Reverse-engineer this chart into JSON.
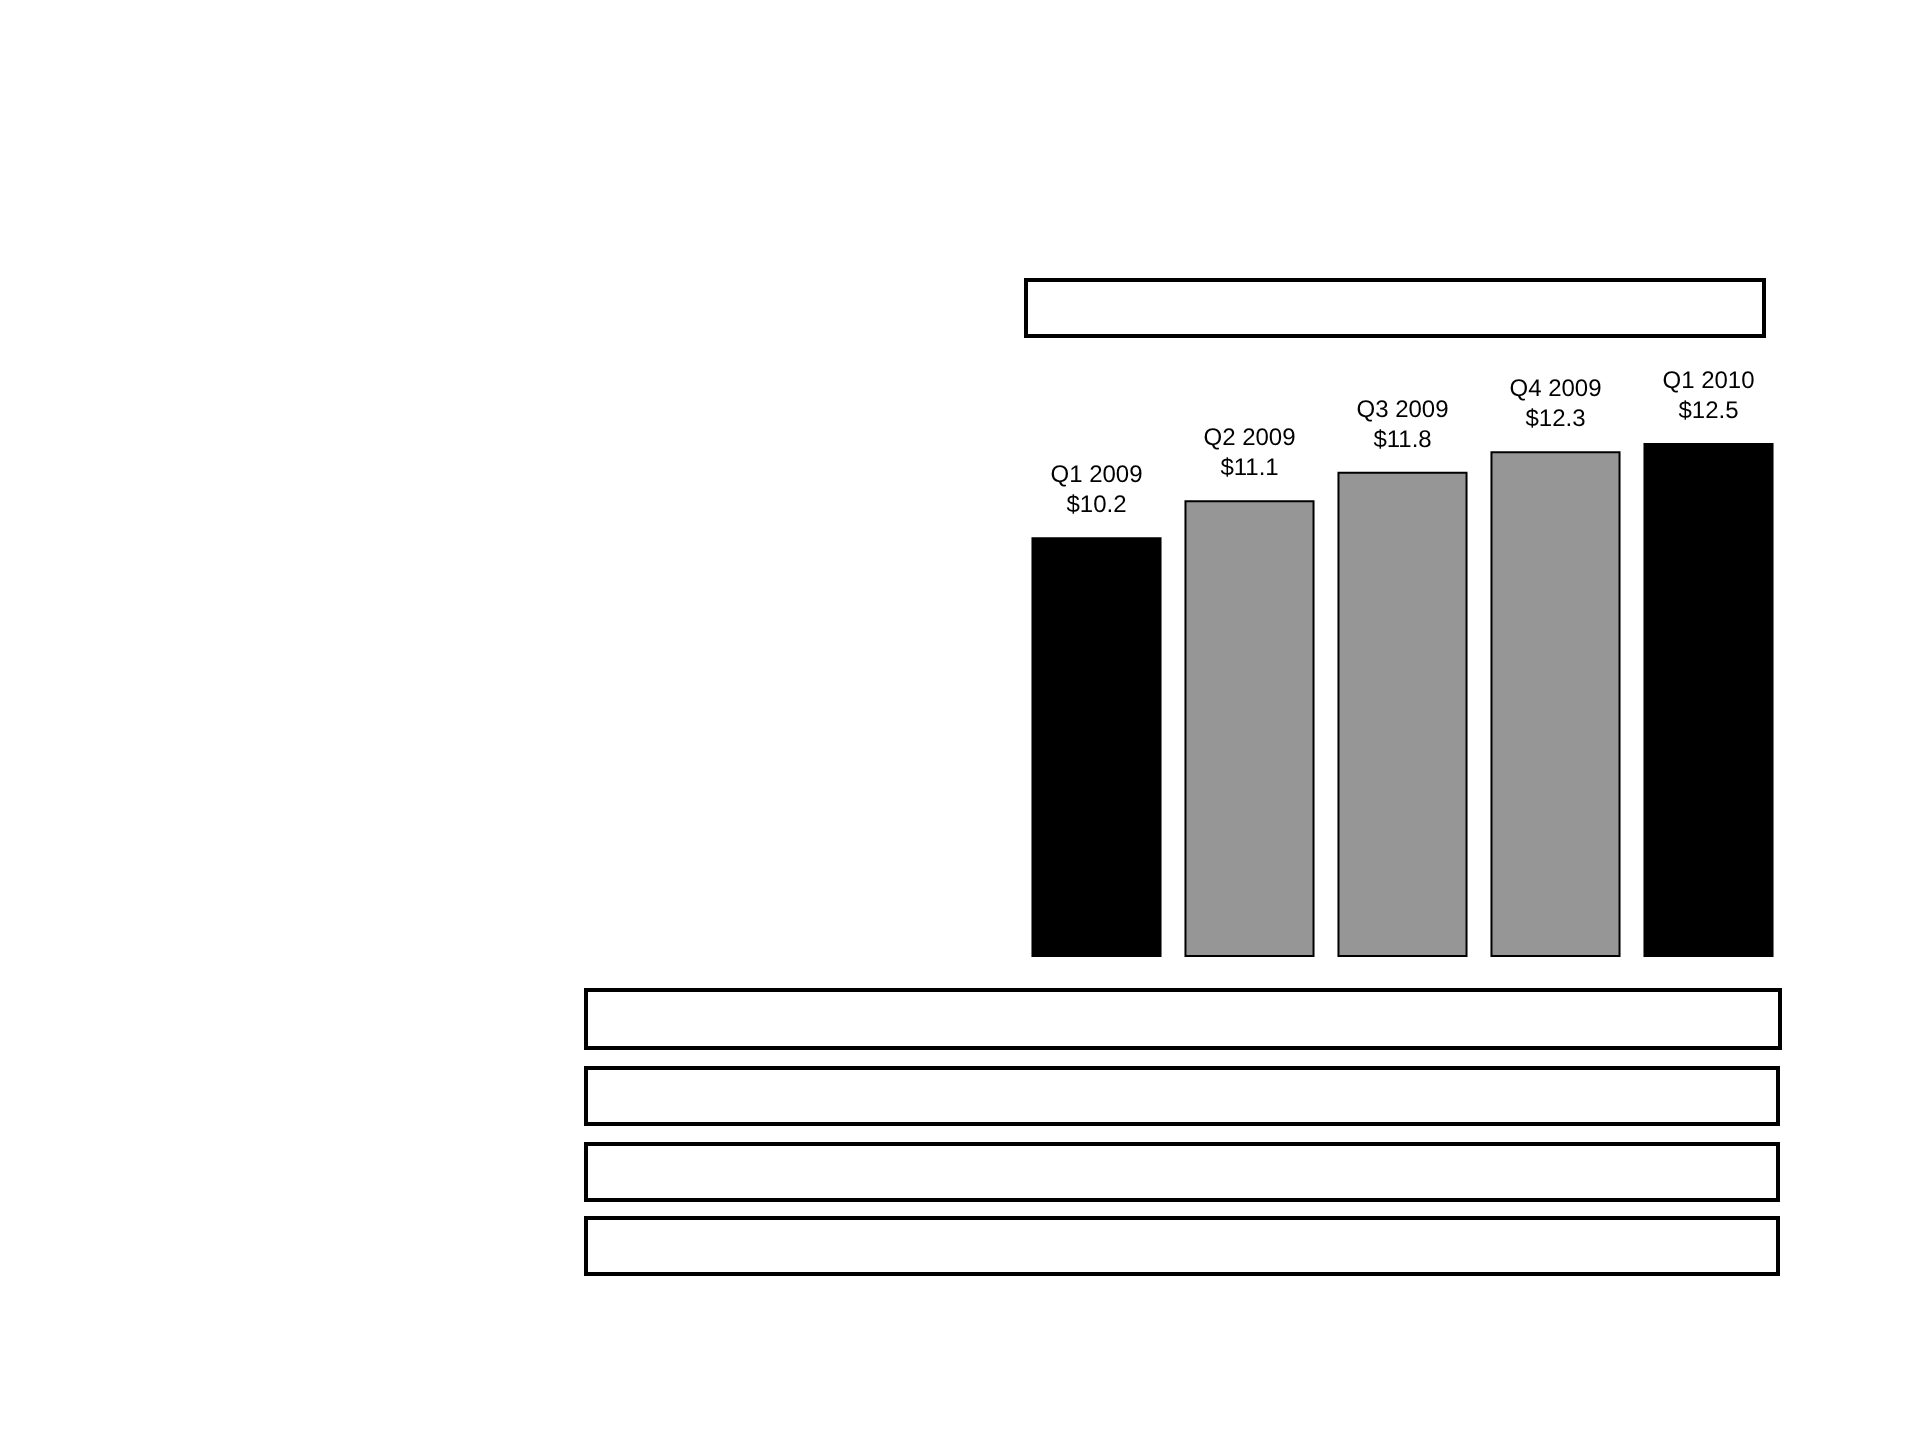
{
  "chart_data": {
    "type": "bar",
    "categories": [
      "Q1 2009",
      "Q2 2009",
      "Q3 2009",
      "Q4 2009",
      "Q1 2010"
    ],
    "values": [
      10.2,
      11.1,
      11.8,
      12.3,
      12.5
    ],
    "colors": [
      "#000000",
      "#969696",
      "#969696",
      "#969696",
      "#000000"
    ],
    "value_labels": [
      "$10.2",
      "$11.1",
      "$11.8",
      "$12.3",
      "$12.5"
    ],
    "tick_labels": false
  }
}
